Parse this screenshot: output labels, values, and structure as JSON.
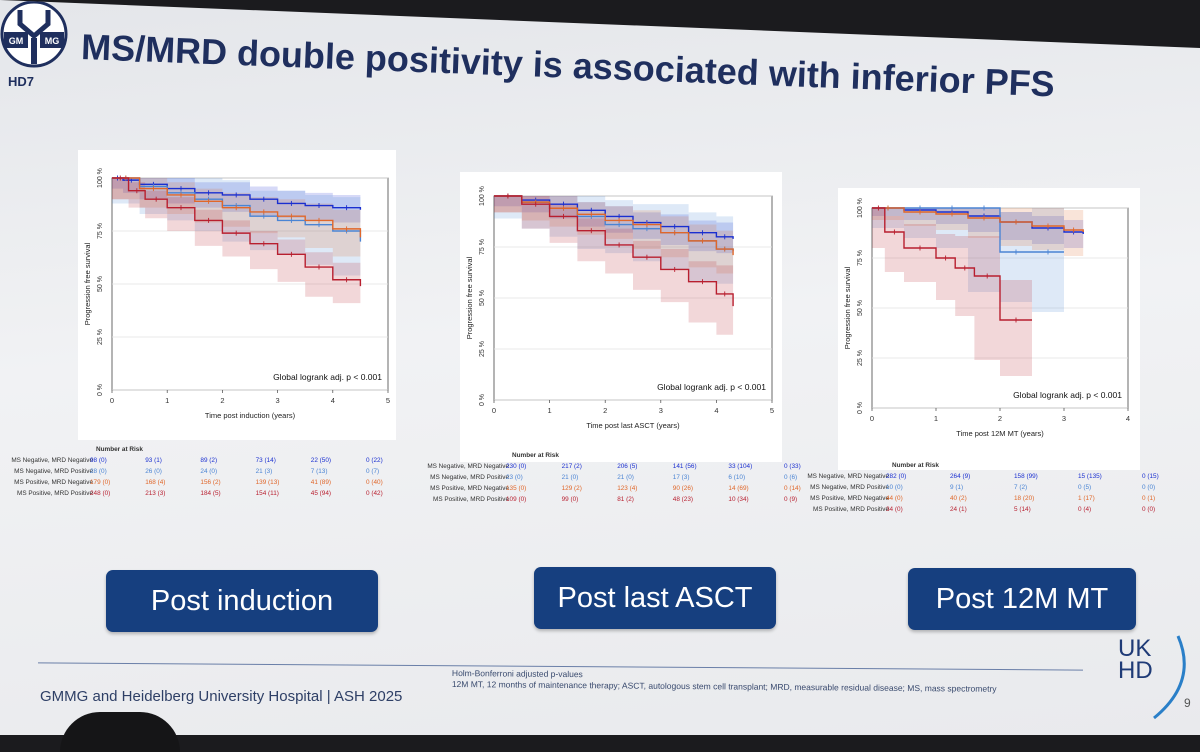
{
  "slide": {
    "title": "MS/MRD double positivity is associated with inferior PFS",
    "logo": {
      "left_text": "GM",
      "right_text": "MG",
      "sub": "HD7"
    },
    "buttons": [
      "Post induction",
      "Post last ASCT",
      "Post 12M MT"
    ],
    "footer": {
      "org": "GMMG and Heidelberg University Hospital | ASH 2025",
      "note1": "Holm-Bonferroni adjusted p-values",
      "note2": "12M MT, 12 months of maintenance therapy; ASCT, autologous stem cell transplant; MRD, measurable residual disease; MS, mass spectrometry"
    },
    "brand": {
      "line1": "UK",
      "line2": "HD"
    },
    "page_number": "9"
  },
  "colors": {
    "ms_neg_mrd_neg": "#1a2fd0",
    "ms_neg_mrd_pos": "#4a84d4",
    "ms_pos_mrd_neg": "#e0672a",
    "ms_pos_mrd_pos": "#b81f2f",
    "button_bg": "#163f7f",
    "title": "#1f2f5e"
  },
  "chart_data": [
    {
      "type": "line",
      "name": "post-induction",
      "ylabel": "Progression free survival",
      "xlabel": "Time post induction (years)",
      "yticks": [
        "0 %",
        "25 %",
        "50 %",
        "75 %",
        "100 %"
      ],
      "xticks": [
        "0",
        "1",
        "2",
        "3",
        "4",
        "5"
      ],
      "xlim": [
        0,
        5
      ],
      "ylim": [
        0,
        100
      ],
      "annotation": "Global logrank adj. p < 0.001",
      "series": [
        {
          "name": "MS Negative, MRD Negative",
          "key": "ms_neg_mrd_neg",
          "x": [
            0,
            0.2,
            0.5,
            1,
            1.5,
            2,
            2.5,
            3,
            3.5,
            4,
            4.5
          ],
          "y": [
            100,
            99,
            97,
            95,
            93,
            92,
            90,
            88,
            87,
            86,
            85
          ],
          "band": [
            4,
            5,
            6,
            6,
            6
          ]
        },
        {
          "name": "MS Negative, MRD Positive",
          "key": "ms_neg_mrd_pos",
          "x": [
            0,
            0.5,
            1,
            1.5,
            2,
            2.5,
            3,
            3.5,
            4,
            4.5
          ],
          "y": [
            100,
            96,
            93,
            90,
            87,
            82,
            80,
            78,
            75,
            70
          ],
          "band": [
            8,
            10,
            12,
            14,
            16
          ]
        },
        {
          "name": "MS Positive, MRD Negative",
          "key": "ms_pos_mrd_neg",
          "x": [
            0,
            0.5,
            1,
            1.5,
            2,
            2.5,
            3,
            3.5,
            4,
            4.5
          ],
          "y": [
            100,
            95,
            92,
            89,
            86,
            84,
            82,
            80,
            76,
            72
          ],
          "band": [
            5,
            6,
            7,
            8,
            9
          ]
        },
        {
          "name": "MS Positive, MRD Positive",
          "key": "ms_pos_mrd_pos",
          "x": [
            0,
            0.3,
            0.6,
            1,
            1.5,
            2,
            2.5,
            3,
            3.5,
            4,
            4.5
          ],
          "y": [
            100,
            94,
            90,
            86,
            80,
            74,
            69,
            64,
            58,
            52,
            49
          ],
          "band": [
            4,
            5,
            6,
            7,
            8
          ]
        }
      ],
      "risk_header": "Number at Risk",
      "risk_table": [
        {
          "label": "MS Negative, MRD Negative",
          "values": [
            "98 (0)",
            "93 (1)",
            "89 (2)",
            "73 (14)",
            "22 (50)",
            "0 (22)"
          ]
        },
        {
          "label": "MS Negative, MRD Positive",
          "values": [
            "28 (0)",
            "26 (0)",
            "24 (0)",
            "21 (3)",
            "7 (13)",
            "0 (7)"
          ]
        },
        {
          "label": "MS Positive, MRD Negative",
          "values": [
            "179 (0)",
            "168 (4)",
            "156 (2)",
            "139 (13)",
            "41 (89)",
            "0 (40)"
          ]
        },
        {
          "label": "MS Positive, MRD Positive",
          "values": [
            "248 (0)",
            "213 (3)",
            "184 (5)",
            "154 (11)",
            "45 (94)",
            "0 (42)"
          ]
        }
      ]
    },
    {
      "type": "line",
      "name": "post-last-asct",
      "ylabel": "Progression free survival",
      "xlabel": "Time post last ASCT (years)",
      "yticks": [
        "0 %",
        "25 %",
        "50 %",
        "75 %",
        "100 %"
      ],
      "xticks": [
        "0",
        "1",
        "2",
        "3",
        "4",
        "5"
      ],
      "xlim": [
        0,
        5
      ],
      "ylim": [
        0,
        100
      ],
      "annotation": "Global logrank adj. p < 0.001",
      "series": [
        {
          "name": "MS Negative, MRD Negative",
          "key": "ms_neg_mrd_neg",
          "x": [
            0,
            0.5,
            1,
            1.5,
            2,
            2.5,
            3,
            3.5,
            4,
            4.3
          ],
          "y": [
            100,
            98,
            96,
            93,
            90,
            87,
            85,
            82,
            80,
            79
          ],
          "band": [
            3,
            4,
            5,
            6,
            7
          ]
        },
        {
          "name": "MS Negative, MRD Positive",
          "key": "ms_neg_mrd_pos",
          "x": [
            0,
            0.5,
            1,
            1.5,
            2,
            2.5,
            3,
            3.5,
            4,
            4.3
          ],
          "y": [
            100,
            97,
            94,
            90,
            86,
            84,
            82,
            78,
            74,
            73
          ],
          "band": [
            8,
            10,
            12,
            14,
            16
          ]
        },
        {
          "name": "MS Positive, MRD Negative",
          "key": "ms_pos_mrd_neg",
          "x": [
            0,
            0.5,
            1,
            1.5,
            2,
            2.5,
            3,
            3.5,
            4,
            4.3
          ],
          "y": [
            100,
            97,
            94,
            91,
            88,
            86,
            82,
            78,
            74,
            71
          ],
          "band": [
            5,
            6,
            7,
            8,
            9
          ]
        },
        {
          "name": "MS Positive, MRD Positive",
          "key": "ms_pos_mrd_pos",
          "x": [
            0,
            0.5,
            1,
            1.5,
            2,
            2.5,
            3,
            3.5,
            4,
            4.3
          ],
          "y": [
            100,
            96,
            90,
            83,
            76,
            70,
            64,
            58,
            52,
            46
          ],
          "band": [
            4,
            6,
            8,
            10,
            14
          ]
        }
      ],
      "risk_header": "Number at Risk",
      "risk_table": [
        {
          "label": "MS Negative, MRD Negative",
          "values": [
            "230 (0)",
            "217 (2)",
            "206 (5)",
            "141 (56)",
            "33 (104)",
            "0 (33)"
          ]
        },
        {
          "label": "MS Negative, MRD Positive",
          "values": [
            "23 (0)",
            "21 (0)",
            "21 (0)",
            "17 (3)",
            "6 (10)",
            "0 (6)"
          ]
        },
        {
          "label": "MS Positive, MRD Negative",
          "values": [
            "135 (0)",
            "129 (2)",
            "123 (4)",
            "90 (26)",
            "14 (69)",
            "0 (14)"
          ]
        },
        {
          "label": "MS Positive, MRD Positive",
          "values": [
            "109 (0)",
            "99 (0)",
            "81 (2)",
            "48 (23)",
            "10 (34)",
            "0 (9)"
          ]
        }
      ]
    },
    {
      "type": "line",
      "name": "post-12m-mt",
      "ylabel": "Progression free survival",
      "xlabel": "Time post 12M MT (years)",
      "yticks": [
        "0 %",
        "25 %",
        "50 %",
        "75 %",
        "100 %"
      ],
      "xticks": [
        "0",
        "1",
        "2",
        "3",
        "4"
      ],
      "xlim": [
        0,
        4
      ],
      "ylim": [
        0,
        100
      ],
      "annotation": "Global logrank adj. p < 0.001",
      "series": [
        {
          "name": "MS Negative, MRD Negative",
          "key": "ms_neg_mrd_neg",
          "x": [
            0,
            0.5,
            1,
            1.5,
            2,
            2.5,
            3,
            3.3
          ],
          "y": [
            100,
            99,
            98,
            96,
            93,
            90,
            88,
            87
          ],
          "band": [
            3,
            4,
            5,
            6,
            7
          ]
        },
        {
          "name": "MS Negative, MRD Positive",
          "key": "ms_neg_mrd_pos",
          "x": [
            0,
            0.5,
            1,
            1.5,
            2,
            2.5,
            3
          ],
          "y": [
            100,
            100,
            100,
            100,
            78,
            78,
            78
          ],
          "band": [
            10,
            15,
            20,
            25,
            30
          ]
        },
        {
          "name": "MS Positive, MRD Negative",
          "key": "ms_pos_mrd_neg",
          "x": [
            0,
            0.5,
            1,
            1.5,
            2,
            2.5,
            3,
            3.3
          ],
          "y": [
            100,
            98,
            97,
            95,
            93,
            91,
            89,
            88
          ],
          "band": [
            4,
            6,
            8,
            10,
            12
          ]
        },
        {
          "name": "MS Positive, MRD Positive",
          "key": "ms_pos_mrd_pos",
          "x": [
            0,
            0.2,
            0.5,
            1,
            1.3,
            1.6,
            2,
            2.5
          ],
          "y": [
            100,
            88,
            80,
            75,
            70,
            66,
            44,
            44
          ],
          "band": [
            8,
            12,
            16,
            20,
            28
          ]
        }
      ],
      "risk_header": "Number at Risk",
      "risk_table": [
        {
          "label": "MS Negative, MRD Negative",
          "values": [
            "282 (0)",
            "264 (9)",
            "158 (99)",
            "15 (135)",
            "0 (15)"
          ]
        },
        {
          "label": "MS Negative, MRD Positive",
          "values": [
            "10 (0)",
            "9 (1)",
            "7 (2)",
            "0 (5)",
            "0 (0)"
          ]
        },
        {
          "label": "MS Positive, MRD Negative",
          "values": [
            "44 (0)",
            "40 (2)",
            "18 (20)",
            "1 (17)",
            "0 (1)"
          ]
        },
        {
          "label": "MS Positive, MRD Positive",
          "values": [
            "34 (0)",
            "24 (1)",
            "5 (14)",
            "0 (4)",
            "0 (0)"
          ]
        }
      ]
    }
  ]
}
